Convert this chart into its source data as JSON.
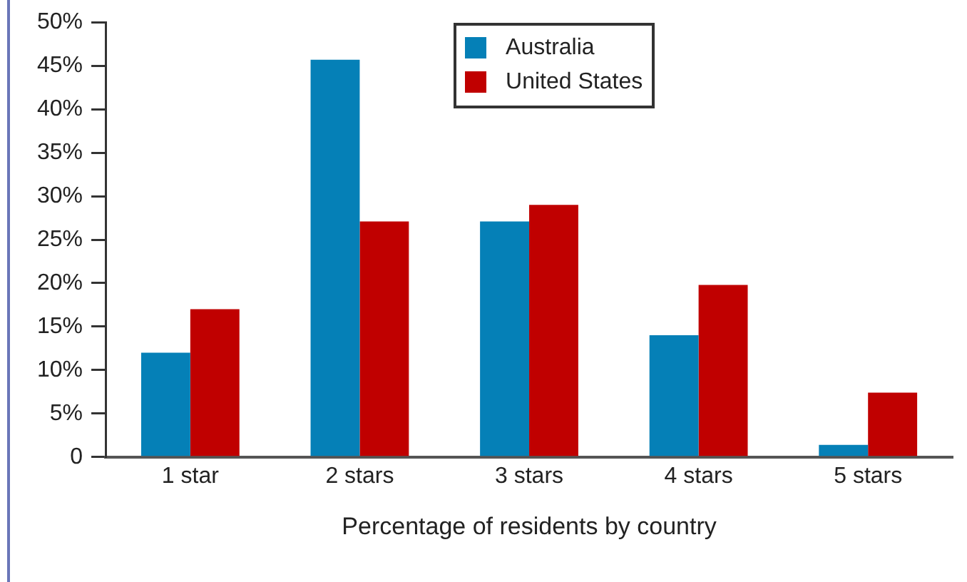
{
  "chart_data": {
    "type": "bar",
    "xlabel": "Percentage of residents by country",
    "categories": [
      "1 star",
      "2 stars",
      "3 stars",
      "4 stars",
      "5 stars"
    ],
    "series": [
      {
        "name": "Australia",
        "color": "#0580b7",
        "values": [
          12,
          45.7,
          27.1,
          14,
          1.4
        ]
      },
      {
        "name": "United States",
        "color": "#c00000",
        "values": [
          17,
          27.1,
          29,
          19.8,
          7.4
        ]
      }
    ],
    "ylim": [
      0,
      50
    ],
    "yticks": [
      0,
      {
        "value": 5,
        "label": "5%"
      },
      {
        "value": 10,
        "label": "10%"
      },
      {
        "value": 15,
        "label": "15%"
      },
      {
        "value": 20,
        "label": "20%"
      },
      {
        "value": 25,
        "label": "25%"
      },
      {
        "value": 30,
        "label": "30%"
      },
      {
        "value": 35,
        "label": "35%"
      },
      {
        "value": 40,
        "label": "40%"
      },
      {
        "value": 45,
        "label": "45%"
      },
      {
        "value": 50,
        "label": "50%"
      }
    ],
    "grid": false,
    "legend": "top right"
  }
}
